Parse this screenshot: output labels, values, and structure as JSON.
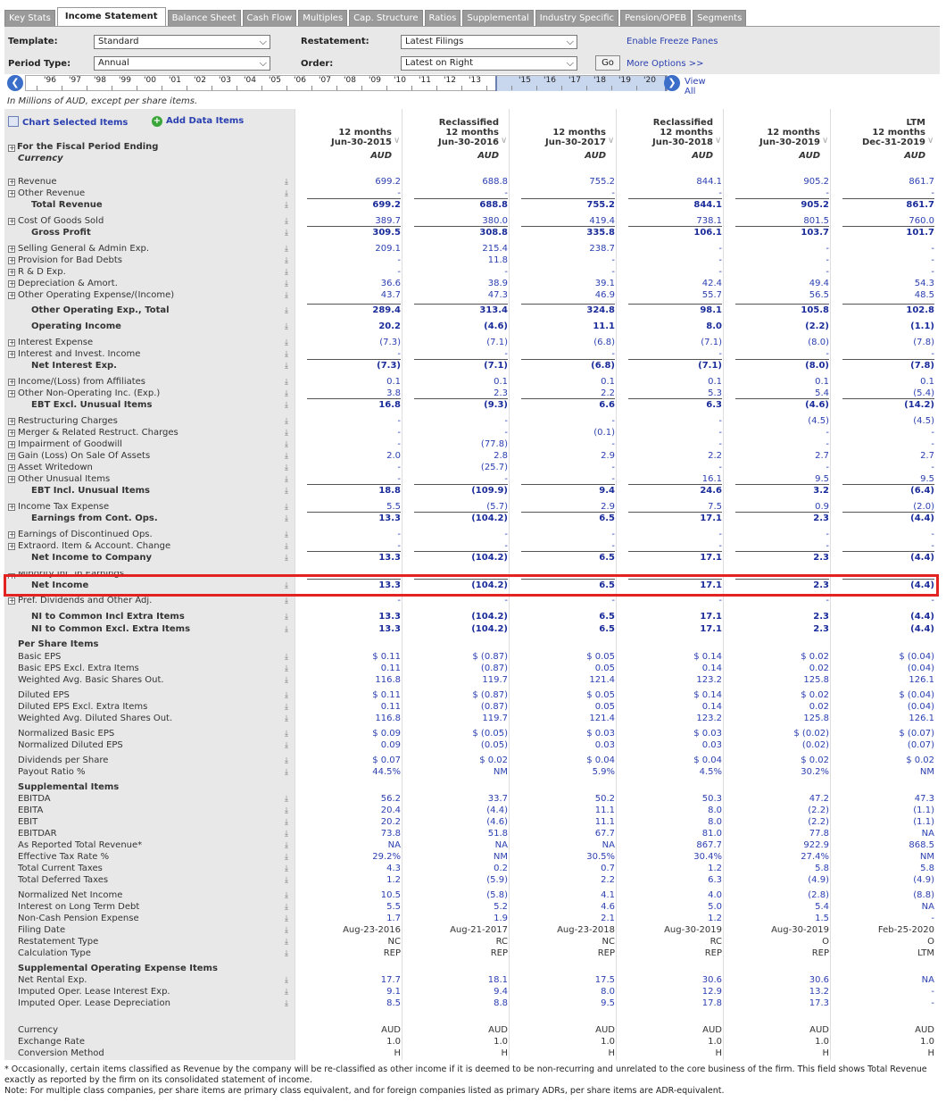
{
  "tabs": [
    "Key Stats",
    "Income Statement",
    "Balance Sheet",
    "Cash Flow",
    "Multiples",
    "Cap. Structure",
    "Ratios",
    "Supplemental",
    "Industry Specific",
    "Pension/OPEB",
    "Segments"
  ],
  "active_tab": 1,
  "controls": {
    "template_label": "Template:",
    "template_value": "Standard",
    "restatement_label": "Restatement:",
    "restatement_value": "Latest Filings",
    "period_label": "Period Type:",
    "period_value": "Annual",
    "order_label": "Order:",
    "order_value": "Latest on Right",
    "go": "Go",
    "freeze": "Enable Freeze Panes",
    "more": "More Options >>",
    "view_all": "View All"
  },
  "timeline": [
    "'96",
    "'97",
    "'98",
    "'99",
    "'00",
    "'01",
    "'02",
    "'03",
    "'04",
    "'05",
    "'06",
    "'07",
    "'08",
    "'09",
    "'10",
    "'11",
    "'12",
    "'13",
    "",
    "'15",
    "'16",
    "'17",
    "'18",
    "'19",
    "'20"
  ],
  "units_note": "In Millions of AUD, except per share items.",
  "chart_selected": "Chart Selected Items",
  "add_data": "Add Data Items",
  "fiscal_label": "For the Fiscal Period Ending",
  "currency_label": "Currency",
  "columns": [
    {
      "l1": "",
      "l2": "12 months",
      "l3": "Jun-30-2015",
      "cur": "AUD"
    },
    {
      "l1": "Reclassified",
      "l2": "12 months",
      "l3": "Jun-30-2016",
      "cur": "AUD"
    },
    {
      "l1": "",
      "l2": "12 months",
      "l3": "Jun-30-2017",
      "cur": "AUD"
    },
    {
      "l1": "Reclassified",
      "l2": "12 months",
      "l3": "Jun-30-2018",
      "cur": "AUD"
    },
    {
      "l1": "",
      "l2": "12 months",
      "l3": "Jun-30-2019",
      "cur": "AUD"
    },
    {
      "l1": "LTM",
      "l2": "12 months",
      "l3": "Dec-31-2019",
      "cur": "AUD"
    }
  ],
  "rows": [
    {
      "y": 203,
      "t": "Revenue",
      "pm": 1,
      "c": 1,
      "v": [
        "699.2",
        "688.8",
        "755.2",
        "844.1",
        "905.2",
        "861.7"
      ]
    },
    {
      "y": 216,
      "t": "Other Revenue",
      "pm": 1,
      "c": 1,
      "v": [
        "-",
        "-",
        "-",
        "-",
        "-",
        "-"
      ]
    },
    {
      "y": 229,
      "t": "Total Revenue",
      "k": "bold",
      "c": 1,
      "u": 1,
      "v": [
        "699.2",
        "688.8",
        "755.2",
        "844.1",
        "905.2",
        "861.7"
      ]
    },
    {
      "y": 247,
      "t": "Cost Of Goods Sold",
      "pm": 1,
      "c": 1,
      "v": [
        "389.7",
        "380.0",
        "419.4",
        "738.1",
        "801.5",
        "760.0"
      ]
    },
    {
      "y": 260,
      "t": "Gross Profit",
      "k": "bold",
      "c": 1,
      "u": 1,
      "v": [
        "309.5",
        "308.8",
        "335.8",
        "106.1",
        "103.7",
        "101.7"
      ]
    },
    {
      "y": 278,
      "t": "Selling General & Admin Exp.",
      "pm": 1,
      "c": 1,
      "v": [
        "209.1",
        "215.4",
        "238.7",
        "-",
        "-",
        "-"
      ]
    },
    {
      "y": 291,
      "t": "Provision for Bad Debts",
      "pm": 1,
      "c": 1,
      "v": [
        "-",
        "11.8",
        "-",
        "-",
        "-",
        "-"
      ]
    },
    {
      "y": 304,
      "t": "R & D Exp.",
      "pm": 1,
      "c": 1,
      "v": [
        "-",
        "-",
        "-",
        "-",
        "-",
        "-"
      ]
    },
    {
      "y": 317,
      "t": "Depreciation & Amort.",
      "pm": 1,
      "c": 1,
      "v": [
        "36.6",
        "38.9",
        "39.1",
        "42.4",
        "49.4",
        "54.3"
      ]
    },
    {
      "y": 330,
      "t": "Other Operating Expense/(Income)",
      "pm": 1,
      "c": 1,
      "v": [
        "43.7",
        "47.3",
        "46.9",
        "55.7",
        "56.5",
        "48.5"
      ]
    },
    {
      "y": 347,
      "t": "Other Operating Exp., Total",
      "k": "bold",
      "c": 1,
      "u": 1,
      "v": [
        "289.4",
        "313.4",
        "324.8",
        "98.1",
        "105.8",
        "102.8"
      ]
    },
    {
      "y": 365,
      "t": "Operating Income",
      "k": "bold",
      "c": 1,
      "v": [
        "20.2",
        "(4.6)",
        "11.1",
        "8.0",
        "(2.2)",
        "(1.1)"
      ]
    },
    {
      "y": 383,
      "t": "Interest Expense",
      "pm": 1,
      "c": 1,
      "v": [
        "(7.3)",
        "(7.1)",
        "(6.8)",
        "(7.1)",
        "(8.0)",
        "(7.8)"
      ]
    },
    {
      "y": 396,
      "t": "Interest and Invest. Income",
      "pm": 1,
      "c": 1,
      "v": [
        "-",
        "-",
        "-",
        "-",
        "-",
        "-"
      ]
    },
    {
      "y": 409,
      "t": "Net Interest Exp.",
      "k": "bold",
      "c": 1,
      "u": 1,
      "v": [
        "(7.3)",
        "(7.1)",
        "(6.8)",
        "(7.1)",
        "(8.0)",
        "(7.8)"
      ]
    },
    {
      "y": 427,
      "t": "Income/(Loss) from Affiliates",
      "pm": 1,
      "c": 1,
      "v": [
        "0.1",
        "0.1",
        "0.1",
        "0.1",
        "0.1",
        "0.1"
      ]
    },
    {
      "y": 440,
      "t": "Other Non-Operating Inc. (Exp.)",
      "pm": 1,
      "c": 1,
      "v": [
        "3.8",
        "2.3",
        "2.2",
        "5.3",
        "5.4",
        "(5.4)"
      ]
    },
    {
      "y": 453,
      "t": "EBT Excl. Unusual Items",
      "k": "bold",
      "c": 1,
      "u": 1,
      "v": [
        "16.8",
        "(9.3)",
        "6.6",
        "6.3",
        "(4.6)",
        "(14.2)"
      ]
    },
    {
      "y": 471,
      "t": "Restructuring Charges",
      "pm": 1,
      "c": 1,
      "v": [
        "-",
        "-",
        "-",
        "-",
        "(4.5)",
        "(4.5)"
      ]
    },
    {
      "y": 484,
      "t": "Merger & Related Restruct. Charges",
      "pm": 1,
      "c": 1,
      "v": [
        "-",
        "-",
        "(0.1)",
        "-",
        "-",
        "-"
      ]
    },
    {
      "y": 497,
      "t": "Impairment of Goodwill",
      "pm": 1,
      "c": 1,
      "v": [
        "-",
        "(77.8)",
        "-",
        "-",
        "-",
        "-"
      ]
    },
    {
      "y": 510,
      "t": "Gain (Loss) On Sale Of Assets",
      "pm": 1,
      "c": 1,
      "v": [
        "2.0",
        "2.8",
        "2.9",
        "2.2",
        "2.7",
        "2.7"
      ]
    },
    {
      "y": 523,
      "t": "Asset Writedown",
      "pm": 1,
      "c": 1,
      "v": [
        "-",
        "(25.7)",
        "-",
        "-",
        "-",
        "-"
      ]
    },
    {
      "y": 536,
      "t": "Other Unusual Items",
      "pm": 1,
      "c": 1,
      "v": [
        "-",
        "-",
        "-",
        "16.1",
        "9.5",
        "9.5"
      ]
    },
    {
      "y": 549,
      "t": "EBT Incl. Unusual Items",
      "k": "bold",
      "c": 1,
      "u": 1,
      "v": [
        "18.8",
        "(109.9)",
        "9.4",
        "24.6",
        "3.2",
        "(6.4)"
      ]
    },
    {
      "y": 567,
      "t": "Income Tax Expense",
      "pm": 1,
      "c": 1,
      "v": [
        "5.5",
        "(5.7)",
        "2.9",
        "7.5",
        "0.9",
        "(2.0)"
      ]
    },
    {
      "y": 580,
      "t": "Earnings from Cont. Ops.",
      "k": "bold",
      "c": 1,
      "u": 1,
      "v": [
        "13.3",
        "(104.2)",
        "6.5",
        "17.1",
        "2.3",
        "(4.4)"
      ]
    },
    {
      "y": 598,
      "t": "Earnings of Discontinued Ops.",
      "pm": 1,
      "c": 1,
      "v": [
        "-",
        "-",
        "-",
        "-",
        "-",
        "-"
      ]
    },
    {
      "y": 611,
      "t": "Extraord. Item & Account. Change",
      "pm": 1,
      "c": 1,
      "v": [
        "-",
        "-",
        "-",
        "-",
        "-",
        "-"
      ]
    },
    {
      "y": 624,
      "t": "Net Income to Company",
      "k": "bold",
      "c": 1,
      "u": 1,
      "v": [
        "13.3",
        "(104.2)",
        "6.5",
        "17.1",
        "2.3",
        "(4.4)"
      ]
    },
    {
      "y": 655,
      "t": "Net Income",
      "k": "bold",
      "c": 1,
      "u": 1,
      "v": [
        "13.3",
        "(104.2)",
        "6.5",
        "17.1",
        "2.3",
        "(4.4)"
      ]
    },
    {
      "y": 672,
      "t": "Pref. Dividends and Other Adj.",
      "pm": 1,
      "c": 1,
      "v": [
        "-",
        "-",
        "-",
        "-",
        "-",
        "-"
      ]
    },
    {
      "y": 690,
      "t": "NI to Common Incl Extra Items",
      "k": "bold",
      "c": 1,
      "v": [
        "13.3",
        "(104.2)",
        "6.5",
        "17.1",
        "2.3",
        "(4.4)"
      ]
    },
    {
      "y": 704,
      "t": "NI to Common Excl. Extra Items",
      "k": "bold",
      "c": 1,
      "v": [
        "13.3",
        "(104.2)",
        "6.5",
        "17.1",
        "2.3",
        "(4.4)"
      ]
    },
    {
      "y": 721,
      "t": "Per Share Items",
      "k": "hdr",
      "v": [
        "",
        "",
        "",
        "",
        "",
        ""
      ]
    },
    {
      "y": 735,
      "t": "Basic EPS",
      "c": 1,
      "v": [
        "$ 0.11",
        "$ (0.87)",
        "$ 0.05",
        "$ 0.14",
        "$ 0.02",
        "$ (0.04)"
      ]
    },
    {
      "y": 748,
      "t": "Basic EPS Excl. Extra Items",
      "c": 1,
      "v": [
        "0.11",
        "(0.87)",
        "0.05",
        "0.14",
        "0.02",
        "(0.04)"
      ]
    },
    {
      "y": 761,
      "t": "Weighted Avg. Basic Shares Out.",
      "c": 1,
      "v": [
        "116.8",
        "119.7",
        "121.4",
        "123.2",
        "125.8",
        "126.1"
      ]
    },
    {
      "y": 778,
      "t": "Diluted EPS",
      "c": 1,
      "v": [
        "$ 0.11",
        "$ (0.87)",
        "$ 0.05",
        "$ 0.14",
        "$ 0.02",
        "$ (0.04)"
      ]
    },
    {
      "y": 791,
      "t": "Diluted EPS Excl. Extra Items",
      "c": 1,
      "v": [
        "0.11",
        "(0.87)",
        "0.05",
        "0.14",
        "0.02",
        "(0.04)"
      ]
    },
    {
      "y": 804,
      "t": "Weighted Avg. Diluted Shares Out.",
      "c": 1,
      "v": [
        "116.8",
        "119.7",
        "121.4",
        "123.2",
        "125.8",
        "126.1"
      ]
    },
    {
      "y": 821,
      "t": "Normalized Basic EPS",
      "c": 1,
      "v": [
        "$ 0.09",
        "$ (0.05)",
        "$ 0.03",
        "$ 0.03",
        "$ (0.02)",
        "$ (0.07)"
      ]
    },
    {
      "y": 834,
      "t": "Normalized Diluted EPS",
      "c": 1,
      "v": [
        "0.09",
        "(0.05)",
        "0.03",
        "0.03",
        "(0.02)",
        "(0.07)"
      ]
    },
    {
      "y": 851,
      "t": "Dividends per Share",
      "c": 1,
      "v": [
        "$ 0.07",
        "$ 0.02",
        "$ 0.04",
        "$ 0.04",
        "$ 0.02",
        "$ 0.02"
      ]
    },
    {
      "y": 864,
      "t": "Payout Ratio %",
      "c": 1,
      "v": [
        "44.5%",
        "NM",
        "5.9%",
        "4.5%",
        "30.2%",
        "NM"
      ]
    },
    {
      "y": 881,
      "t": "Supplemental Items",
      "k": "hdr",
      "v": [
        "",
        "",
        "",
        "",
        "",
        ""
      ]
    },
    {
      "y": 894,
      "t": "EBITDA",
      "c": 1,
      "v": [
        "56.2",
        "33.7",
        "50.2",
        "50.3",
        "47.2",
        "47.3"
      ]
    },
    {
      "y": 907,
      "t": "EBITA",
      "c": 1,
      "v": [
        "20.4",
        "(4.4)",
        "11.1",
        "8.0",
        "(2.2)",
        "(1.1)"
      ]
    },
    {
      "y": 920,
      "t": "EBIT",
      "c": 1,
      "v": [
        "20.2",
        "(4.6)",
        "11.1",
        "8.0",
        "(2.2)",
        "(1.1)"
      ]
    },
    {
      "y": 933,
      "t": "EBITDAR",
      "c": 1,
      "v": [
        "73.8",
        "51.8",
        "67.7",
        "81.0",
        "77.8",
        "NA"
      ]
    },
    {
      "y": 946,
      "t": "As Reported Total Revenue*",
      "c": 1,
      "v": [
        "NA",
        "NA",
        "NA",
        "867.7",
        "922.9",
        "868.5"
      ]
    },
    {
      "y": 959,
      "t": "Effective Tax Rate %",
      "c": 1,
      "v": [
        "29.2%",
        "NM",
        "30.5%",
        "30.4%",
        "27.4%",
        "NM"
      ]
    },
    {
      "y": 972,
      "t": "Total Current Taxes",
      "c": 1,
      "v": [
        "4.3",
        "0.2",
        "0.7",
        "1.2",
        "5.8",
        "5.8"
      ]
    },
    {
      "y": 985,
      "t": "Total Deferred Taxes",
      "c": 1,
      "v": [
        "1.2",
        "(5.9)",
        "2.2",
        "6.3",
        "(4.9)",
        "(4.9)"
      ]
    },
    {
      "y": 1002,
      "t": "Normalized Net Income",
      "c": 1,
      "v": [
        "10.5",
        "(5.8)",
        "4.1",
        "4.0",
        "(2.8)",
        "(8.8)"
      ]
    },
    {
      "y": 1015,
      "t": "Interest on Long Term Debt",
      "c": 1,
      "v": [
        "5.5",
        "5.2",
        "4.6",
        "5.0",
        "5.4",
        "NA"
      ]
    },
    {
      "y": 1028,
      "t": "Non-Cash Pension Expense",
      "c": 1,
      "v": [
        "1.7",
        "1.9",
        "2.1",
        "1.2",
        "1.5",
        "-"
      ]
    },
    {
      "y": 1041,
      "t": "Filing Date",
      "c": 1,
      "v": [
        "Aug-23-2016",
        "Aug-21-2017",
        "Aug-23-2018",
        "Aug-30-2019",
        "Aug-30-2019",
        "Feb-25-2020"
      ],
      "plain": 1
    },
    {
      "y": 1054,
      "t": "Restatement Type",
      "c": 1,
      "v": [
        "NC",
        "RC",
        "NC",
        "RC",
        "O",
        "O"
      ],
      "plain": 1
    },
    {
      "y": 1067,
      "t": "Calculation Type",
      "c": 1,
      "v": [
        "REP",
        "REP",
        "REP",
        "REP",
        "REP",
        "LTM"
      ],
      "plain": 1
    },
    {
      "y": 1084,
      "t": "Supplemental Operating Expense Items",
      "k": "hdr",
      "v": [
        "",
        "",
        "",
        "",
        "",
        ""
      ]
    },
    {
      "y": 1097,
      "t": "Net Rental Exp.",
      "c": 1,
      "v": [
        "17.7",
        "18.1",
        "17.5",
        "30.6",
        "30.6",
        "NA"
      ]
    },
    {
      "y": 1110,
      "t": "Imputed Oper. Lease Interest Exp.",
      "c": 1,
      "v": [
        "9.1",
        "9.4",
        "8.0",
        "12.9",
        "13.2",
        "-"
      ]
    },
    {
      "y": 1123,
      "t": "Imputed Oper. Lease Depreciation",
      "c": 1,
      "v": [
        "8.5",
        "8.8",
        "9.5",
        "17.8",
        "17.3",
        "-"
      ]
    },
    {
      "y": 1153,
      "t": "Currency",
      "v": [
        "AUD",
        "AUD",
        "AUD",
        "AUD",
        "AUD",
        "AUD"
      ],
      "plain": 1
    },
    {
      "y": 1166,
      "t": "Exchange Rate",
      "v": [
        "1.0",
        "1.0",
        "1.0",
        "1.0",
        "1.0",
        "1.0"
      ],
      "plain": 1
    },
    {
      "y": 1179,
      "t": "Conversion Method",
      "v": [
        "H",
        "H",
        "H",
        "H",
        "H",
        "H"
      ],
      "plain": 1
    }
  ],
  "minority_label": "Minority Int. in Earnings",
  "footnote1": "* Occasionally, certain items classified as Revenue by the company will be re-classified as other income if it is deemed to be non-recurring and unrelated to the core business of the firm. This field shows Total Revenue exactly as reported by the firm on its consolidated statement of income.",
  "footnote2": "Note: For multiple class companies, per share items are primary class equivalent, and for foreign companies listed as primary ADRs, per share items are ADR-equivalent.",
  "colors": {
    "value_blue": "#2a3fb0",
    "highlight_red": "#e32222",
    "panel_gray": "#e8e8e8"
  }
}
